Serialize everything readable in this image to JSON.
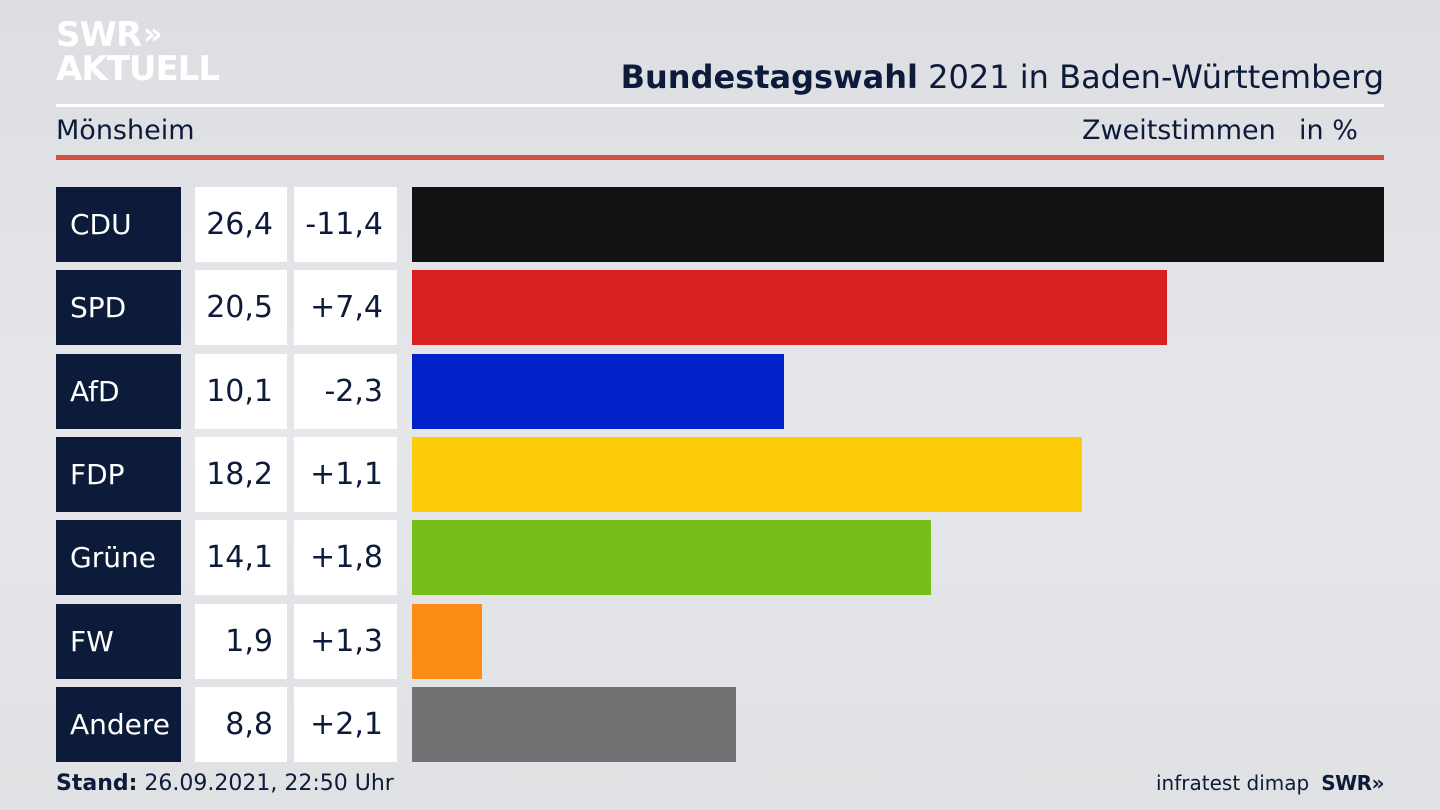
{
  "logo": {
    "line1": "SWR",
    "chevrons": "»",
    "line2": "AKTUELL"
  },
  "header": {
    "title_bold": "Bundestagswahl",
    "title_rest": " 2021 in Baden-Württemberg",
    "location": "Mönsheim",
    "measure": "Zweitstimmen",
    "unit": "in %"
  },
  "footer": {
    "stand_label": "Stand:",
    "stand_value": " 26.09.2021, 22:50 Uhr",
    "source": "infratest dimap",
    "brand": "SWR»"
  },
  "colors": {
    "CDU": "#121212",
    "SPD": "#d7201f",
    "AfD": "#0020c8",
    "FDP": "#fdcd0c",
    "Grüne": "#76be1c",
    "FW": "#fd8c16",
    "Andere": "#717273"
  },
  "chart_data": {
    "type": "bar",
    "orientation": "horizontal",
    "categories": [
      "CDU",
      "SPD",
      "AfD",
      "FDP",
      "Grüne",
      "FW",
      "Andere"
    ],
    "values": [
      26.4,
      20.5,
      10.1,
      18.2,
      14.1,
      1.9,
      8.8
    ],
    "value_labels": [
      "26,4",
      "20,5",
      "10,1",
      "18,2",
      "14,1",
      "1,9",
      "8,8"
    ],
    "changes": [
      "-11,4",
      "+7,4",
      "-2,3",
      "+1,1",
      "+1,8",
      "+1,3",
      "+2,1"
    ],
    "xlim": [
      0,
      26.4
    ],
    "grid": false
  }
}
